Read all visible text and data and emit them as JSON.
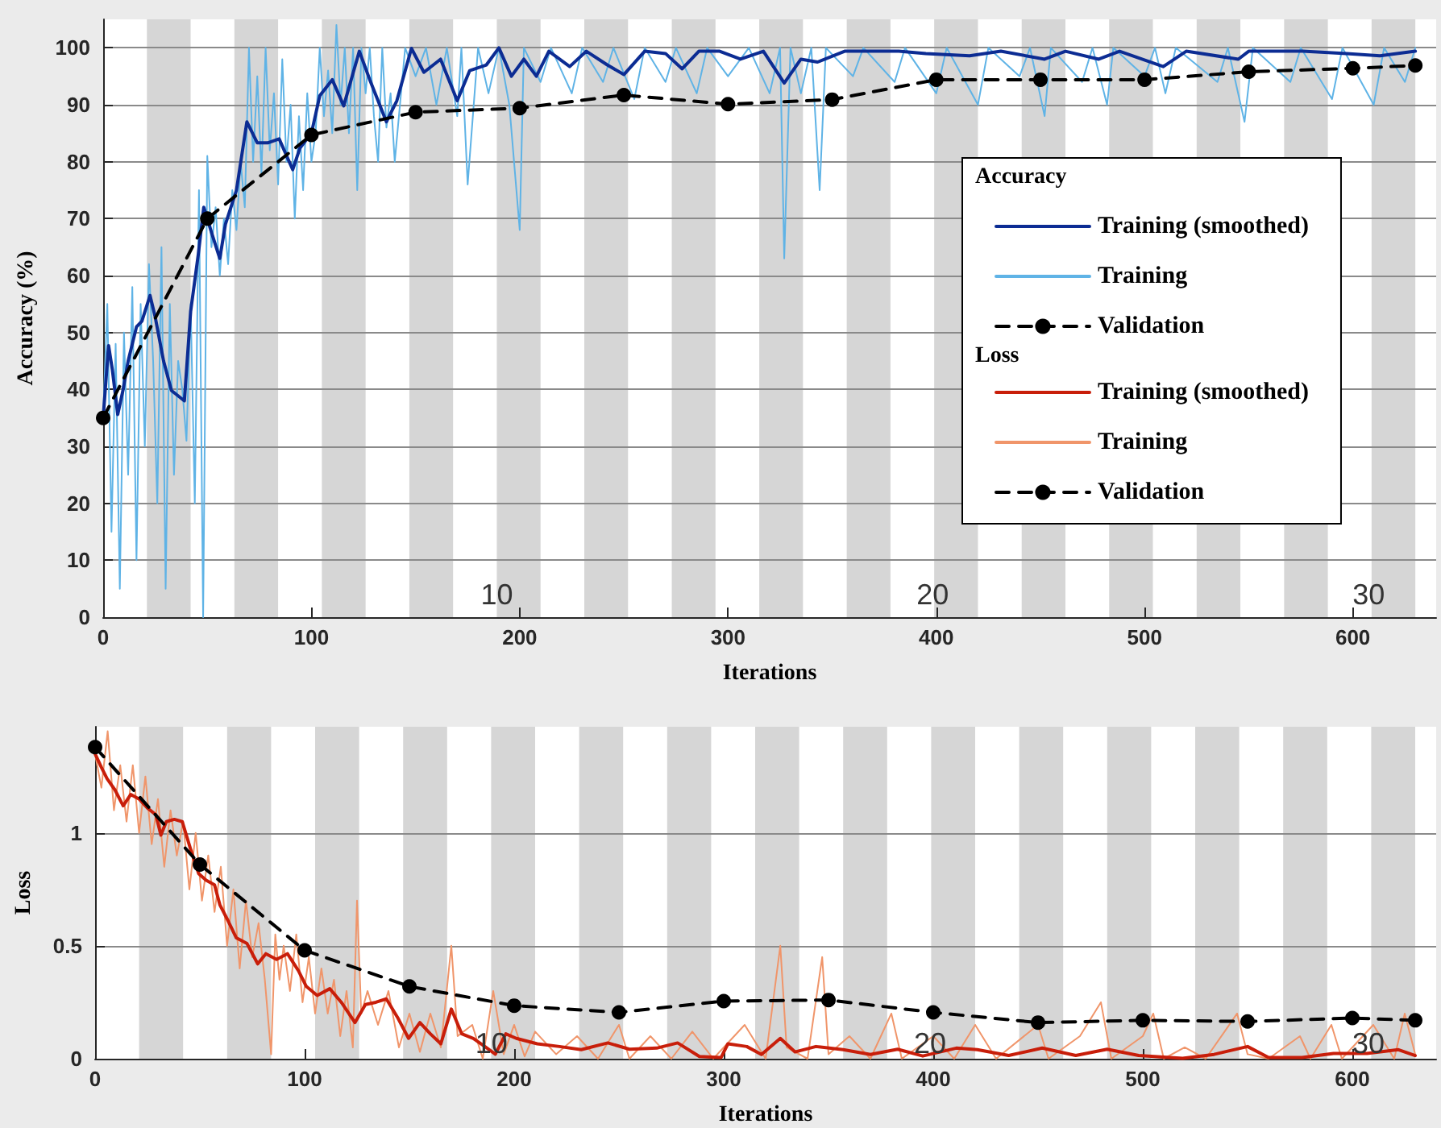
{
  "chart_data": [
    {
      "type": "line",
      "xlabel": "Iterations",
      "ylabel": "Accuracy (%)",
      "legend_title": "Accuracy",
      "xlim": [
        0,
        640
      ],
      "xticks": [
        0,
        100,
        200,
        300,
        400,
        500,
        600
      ],
      "ylim": [
        0,
        105
      ],
      "yticks": [
        0,
        10,
        20,
        30,
        40,
        50,
        60,
        70,
        80,
        90,
        100
      ],
      "grid": "y",
      "legend": "right",
      "bands": [
        {
          "axis": "x",
          "from": 21,
          "to": 42,
          "color": "#d6d6d6"
        },
        {
          "axis": "x",
          "from": 63,
          "to": 84,
          "color": "#d6d6d6"
        },
        {
          "axis": "x",
          "from": 105,
          "to": 126,
          "color": "#d6d6d6"
        },
        {
          "axis": "x",
          "from": 147,
          "to": 168,
          "color": "#d6d6d6"
        },
        {
          "axis": "x",
          "from": 189,
          "to": 210,
          "color": "#d6d6d6"
        },
        {
          "axis": "x",
          "from": 231,
          "to": 252,
          "color": "#d6d6d6"
        },
        {
          "axis": "x",
          "from": 273,
          "to": 294,
          "color": "#d6d6d6"
        },
        {
          "axis": "x",
          "from": 315,
          "to": 336,
          "color": "#d6d6d6"
        },
        {
          "axis": "x",
          "from": 357,
          "to": 378,
          "color": "#d6d6d6"
        },
        {
          "axis": "x",
          "from": 399,
          "to": 420,
          "color": "#d6d6d6"
        },
        {
          "axis": "x",
          "from": 441,
          "to": 462,
          "color": "#d6d6d6"
        },
        {
          "axis": "x",
          "from": 483,
          "to": 504,
          "color": "#d6d6d6"
        },
        {
          "axis": "x",
          "from": 525,
          "to": 546,
          "color": "#d6d6d6"
        },
        {
          "axis": "x",
          "from": 567,
          "to": 588,
          "color": "#d6d6d6"
        },
        {
          "axis": "x",
          "from": 609,
          "to": 630,
          "color": "#d6d6d6"
        }
      ],
      "annotations": [
        "10",
        "20",
        "30"
      ],
      "series": [
        {
          "name": "Training (smoothed)",
          "color": "#0c2c93",
          "marker": "none",
          "line_style": "solid",
          "x": [
            0,
            2.6,
            4.4,
            7,
            9.6,
            12,
            16,
            18.6,
            22.5,
            25,
            29,
            32.8,
            39,
            42,
            45.7,
            48.3,
            52,
            56,
            58.7,
            64,
            69,
            74,
            79,
            84.5,
            91,
            94.5,
            100,
            104,
            110,
            115.5,
            123,
            128,
            136,
            141,
            148,
            154,
            162,
            170,
            176,
            184,
            190,
            196,
            202,
            208,
            214,
            224,
            232,
            242,
            250,
            260,
            270,
            278,
            286,
            296,
            306,
            317,
            327,
            335,
            343,
            356,
            382,
            395,
            416,
            431,
            452,
            462,
            478,
            488,
            509,
            520,
            545,
            550,
            576,
            597,
            613,
            630
          ],
          "values": [
            35,
            47.7,
            43.5,
            35.6,
            40,
            45,
            51,
            52,
            56.5,
            52.7,
            45,
            39.8,
            38,
            53.7,
            63.8,
            72,
            67.6,
            63,
            69,
            75,
            87,
            83.3,
            83.3,
            84,
            78.6,
            82.4,
            85,
            91.6,
            94.4,
            89.8,
            99.4,
            94.4,
            87,
            90.7,
            99.9,
            95.7,
            98,
            90.7,
            96,
            97,
            100,
            95,
            98,
            95,
            99.4,
            96.7,
            99.4,
            97,
            95.3,
            99.4,
            99,
            96.3,
            99.4,
            99.4,
            98,
            99.4,
            93.8,
            98,
            97.5,
            99.4,
            99.4,
            99,
            98.6,
            99.4,
            98,
            99.4,
            98,
            99.4,
            96.7,
            99.4,
            98,
            99.4,
            99.4,
            99,
            98.6,
            99.4
          ]
        },
        {
          "name": "Training",
          "color": "#5fb3e6",
          "marker": "none",
          "line_style": "solid",
          "x": [
            0,
            2,
            4,
            6,
            8,
            10,
            12,
            14,
            16,
            18,
            20,
            22,
            24,
            26,
            28,
            30,
            32,
            34,
            36,
            38,
            40,
            42,
            44,
            46,
            48,
            50,
            52,
            54,
            56,
            58,
            60,
            62,
            64,
            66,
            68,
            70,
            72,
            74,
            76,
            78,
            80,
            82,
            84,
            86,
            88,
            90,
            92,
            94,
            96,
            98,
            100,
            102,
            104,
            106,
            108,
            110,
            112,
            114,
            116,
            118,
            120,
            122,
            124,
            126,
            128,
            130,
            132,
            134,
            136,
            138,
            140,
            145,
            150,
            155,
            160,
            165,
            170,
            172,
            175,
            180,
            185,
            190,
            195,
            200,
            202,
            210,
            215,
            225,
            230,
            240,
            245,
            255,
            260,
            270,
            275,
            285,
            290,
            300,
            310,
            320,
            325,
            327,
            330,
            335,
            340,
            344,
            347,
            360,
            365,
            380,
            385,
            400,
            405,
            420,
            425,
            440,
            445,
            452,
            455,
            470,
            475,
            482,
            485,
            500,
            505,
            510,
            515,
            535,
            540,
            548,
            552,
            570,
            575,
            590,
            595,
            610,
            615,
            625,
            630
          ],
          "values": [
            35,
            55,
            15,
            48,
            5,
            50,
            25,
            58,
            10,
            55,
            30,
            62,
            45,
            20,
            65,
            5,
            55,
            25,
            45,
            40,
            31,
            55,
            20,
            75,
            0,
            81,
            65,
            72,
            60,
            70,
            62,
            75,
            68,
            80,
            72,
            100,
            80,
            95,
            78,
            100,
            82,
            92,
            76,
            98,
            80,
            90,
            70,
            88,
            75,
            92,
            80,
            85,
            100,
            88,
            96,
            85,
            104,
            90,
            100,
            85,
            100,
            75,
            100,
            92,
            100,
            88,
            80,
            100,
            86,
            92,
            80,
            100,
            95,
            100,
            90,
            100,
            88,
            100,
            76,
            100,
            92,
            100,
            90,
            68,
            100,
            94,
            100,
            92,
            100,
            94,
            100,
            91,
            100,
            94,
            100,
            92,
            100,
            95,
            100,
            92,
            100,
            63,
            100,
            92,
            100,
            75,
            100,
            95,
            100,
            94,
            100,
            92,
            100,
            90,
            100,
            95,
            100,
            88,
            100,
            94,
            100,
            90,
            100,
            95,
            100,
            92,
            100,
            94,
            100,
            87,
            100,
            94,
            100,
            91,
            100,
            90,
            100,
            94,
            100
          ]
        },
        {
          "name": "Validation",
          "color": "#000000",
          "marker": "circle",
          "line_style": "dashed",
          "x": [
            0,
            50,
            100,
            150,
            200,
            250,
            300,
            350,
            400,
            450,
            500,
            550,
            600,
            630
          ],
          "values": [
            35,
            70,
            84.7,
            88.7,
            89.4,
            91.7,
            90.1,
            90.9,
            94.4,
            94.4,
            94.4,
            95.8,
            96.4,
            96.9
          ]
        }
      ]
    },
    {
      "type": "line",
      "xlabel": "Iterations",
      "ylabel": "Loss",
      "legend_title": "Loss",
      "xlim": [
        0,
        640
      ],
      "xticks": [
        0,
        100,
        200,
        300,
        400,
        500,
        600
      ],
      "ylim": [
        0,
        1.47
      ],
      "yticks": [
        0,
        0.5,
        1
      ],
      "grid": "y",
      "legend": "top",
      "bands": [
        {
          "axis": "x",
          "from": 21,
          "to": 42,
          "color": "#d6d6d6"
        },
        {
          "axis": "x",
          "from": 63,
          "to": 84,
          "color": "#d6d6d6"
        },
        {
          "axis": "x",
          "from": 105,
          "to": 126,
          "color": "#d6d6d6"
        },
        {
          "axis": "x",
          "from": 147,
          "to": 168,
          "color": "#d6d6d6"
        },
        {
          "axis": "x",
          "from": 189,
          "to": 210,
          "color": "#d6d6d6"
        },
        {
          "axis": "x",
          "from": 231,
          "to": 252,
          "color": "#d6d6d6"
        },
        {
          "axis": "x",
          "from": 273,
          "to": 294,
          "color": "#d6d6d6"
        },
        {
          "axis": "x",
          "from": 315,
          "to": 336,
          "color": "#d6d6d6"
        },
        {
          "axis": "x",
          "from": 357,
          "to": 378,
          "color": "#d6d6d6"
        },
        {
          "axis": "x",
          "from": 399,
          "to": 420,
          "color": "#d6d6d6"
        },
        {
          "axis": "x",
          "from": 441,
          "to": 462,
          "color": "#d6d6d6"
        },
        {
          "axis": "x",
          "from": 483,
          "to": 504,
          "color": "#d6d6d6"
        },
        {
          "axis": "x",
          "from": 525,
          "to": 546,
          "color": "#d6d6d6"
        },
        {
          "axis": "x",
          "from": 567,
          "to": 588,
          "color": "#d6d6d6"
        },
        {
          "axis": "x",
          "from": 609,
          "to": 630,
          "color": "#d6d6d6"
        }
      ],
      "annotations": [
        "10",
        "20",
        "30"
      ],
      "series": [
        {
          "name": "Training (smoothed)",
          "color": "#c81e0a",
          "marker": "none",
          "line_style": "solid",
          "x": [
            0,
            3,
            5.7,
            9.5,
            13.4,
            17,
            21,
            25,
            29,
            31.4,
            34,
            37.8,
            41.6,
            45.5,
            49.4,
            53,
            57,
            59.6,
            63.5,
            67.4,
            72.5,
            77.6,
            81.5,
            86.6,
            91.8,
            97,
            100.8,
            106,
            112,
            117.5,
            124,
            129,
            134,
            139,
            144.5,
            149.6,
            155,
            160,
            165,
            170,
            175,
            180.5,
            186,
            191,
            196,
            201,
            211,
            221.6,
            232,
            244.7,
            255,
            268,
            278,
            288.4,
            298.7,
            302,
            311,
            318,
            327,
            334,
            344,
            357,
            370,
            383,
            395,
            411,
            421,
            436,
            452,
            468,
            483,
            498,
            519,
            534,
            550,
            560,
            576,
            591,
            607,
            622,
            630
          ],
          "values": [
            1.35,
            1.29,
            1.24,
            1.19,
            1.12,
            1.17,
            1.15,
            1.11,
            1.08,
            0.99,
            1.05,
            1.06,
            1.05,
            0.93,
            0.82,
            0.79,
            0.77,
            0.68,
            0.61,
            0.535,
            0.51,
            0.42,
            0.465,
            0.44,
            0.465,
            0.39,
            0.32,
            0.28,
            0.31,
            0.25,
            0.16,
            0.24,
            0.25,
            0.265,
            0.18,
            0.09,
            0.16,
            0.11,
            0.066,
            0.22,
            0.11,
            0.09,
            0.054,
            0.02,
            0.11,
            0.09,
            0.066,
            0.054,
            0.04,
            0.07,
            0.042,
            0.047,
            0.07,
            0.01,
            0.005,
            0.066,
            0.054,
            0.019,
            0.09,
            0.03,
            0.054,
            0.04,
            0.019,
            0.042,
            0.012,
            0.047,
            0.04,
            0.014,
            0.047,
            0.014,
            0.042,
            0.014,
            0.002,
            0.019,
            0.054,
            0.005,
            0.005,
            0.023,
            0.023,
            0.04,
            0.014
          ]
        },
        {
          "name": "Training",
          "color": "#f0956a",
          "marker": "none",
          "line_style": "solid",
          "x": [
            0,
            3,
            6,
            9,
            12,
            15,
            18,
            21,
            24,
            27,
            30,
            33,
            36,
            39,
            42,
            45,
            48,
            51,
            54,
            57,
            60,
            63,
            66,
            69,
            72,
            75,
            78,
            81,
            84,
            86,
            88,
            90,
            93,
            96,
            99,
            102,
            105,
            108,
            111,
            114,
            117,
            120,
            123,
            125,
            127,
            130,
            135,
            140,
            145,
            150,
            155,
            160,
            165,
            170,
            173,
            180,
            185,
            190,
            195,
            200,
            205,
            210,
            220,
            230,
            240,
            250,
            255,
            265,
            275,
            285,
            295,
            300,
            310,
            320,
            327,
            330,
            340,
            347,
            350,
            360,
            370,
            380,
            385,
            400,
            410,
            420,
            430,
            450,
            455,
            470,
            480,
            485,
            500,
            505,
            510,
            520,
            530,
            545,
            550,
            560,
            575,
            580,
            590,
            595,
            600,
            610,
            620,
            625,
            630
          ],
          "values": [
            1.35,
            1.2,
            1.45,
            1.1,
            1.3,
            1.05,
            1.3,
            1.0,
            1.25,
            0.95,
            1.15,
            0.85,
            1.1,
            0.9,
            1.05,
            0.75,
            1.0,
            0.7,
            0.9,
            0.65,
            0.85,
            0.5,
            0.75,
            0.4,
            0.7,
            0.45,
            0.6,
            0.35,
            0.02,
            0.55,
            0.35,
            0.5,
            0.3,
            0.55,
            0.25,
            0.45,
            0.2,
            0.4,
            0.2,
            0.35,
            0.1,
            0.3,
            0.05,
            0.7,
            0.2,
            0.3,
            0.15,
            0.3,
            0.05,
            0.2,
            0.03,
            0.2,
            0.05,
            0.5,
            0.1,
            0.15,
            0,
            0.3,
            0.02,
            0.15,
            0.01,
            0.12,
            0.02,
            0.1,
            0,
            0.15,
            0,
            0.1,
            0,
            0.12,
            0,
            0.05,
            0.15,
            0,
            0.5,
            0.05,
            0,
            0.45,
            0.02,
            0.1,
            0,
            0.2,
            0,
            0.1,
            0,
            0.15,
            0,
            0.15,
            0,
            0.1,
            0.25,
            0,
            0.1,
            0.2,
            0,
            0.05,
            0,
            0.2,
            0.02,
            0,
            0.1,
            0,
            0.15,
            0,
            0.05,
            0.15,
            0,
            0.2,
            0.02
          ]
        },
        {
          "name": "Validation",
          "color": "#000000",
          "marker": "circle",
          "line_style": "dashed",
          "x": [
            0,
            50,
            100,
            150,
            200,
            250,
            300,
            350,
            400,
            450,
            500,
            550,
            600,
            630
          ],
          "values": [
            1.38,
            0.86,
            0.48,
            0.32,
            0.235,
            0.205,
            0.255,
            0.26,
            0.205,
            0.16,
            0.17,
            0.165,
            0.18,
            0.17
          ]
        }
      ]
    }
  ]
}
